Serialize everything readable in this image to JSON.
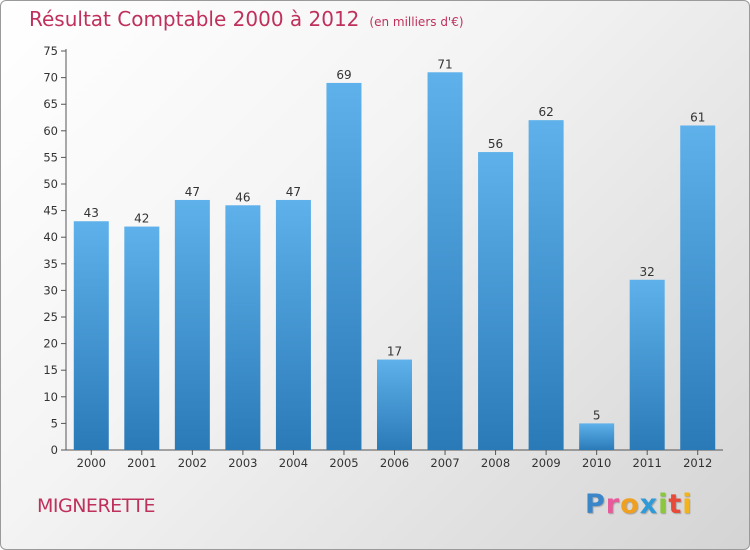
{
  "chart_data": {
    "type": "bar",
    "title": "Résultat Comptable 2000 à 2012",
    "unit_label": "(en milliers d'€)",
    "categories": [
      "2000",
      "2001",
      "2002",
      "2003",
      "2004",
      "2005",
      "2006",
      "2007",
      "2008",
      "2009",
      "2010",
      "2011",
      "2012"
    ],
    "values": [
      43,
      42,
      47,
      46,
      47,
      69,
      17,
      71,
      56,
      62,
      5,
      32,
      61
    ],
    "ylim": [
      0,
      75
    ],
    "yticks": [
      0,
      5,
      10,
      15,
      20,
      25,
      30,
      35,
      40,
      45,
      50,
      55,
      60,
      65,
      70,
      75
    ],
    "xlabel": "",
    "ylabel": "",
    "grid": false,
    "colors": {
      "bar_top": "#5eb1ea",
      "bar_bottom": "#2a7ab8",
      "text": "#333333",
      "axis": "#555555",
      "accent": "#c0305c"
    }
  },
  "footer": {
    "location": "MIGNERETTE",
    "logo_letters": [
      {
        "ch": "P",
        "color": "#3a86c8"
      },
      {
        "ch": "r",
        "color": "#e85a9a"
      },
      {
        "ch": "o",
        "color": "#f0a020"
      },
      {
        "ch": "x",
        "color": "#2f9ad8"
      },
      {
        "ch": "i",
        "color": "#8cc63f"
      },
      {
        "ch": "t",
        "color": "#e84a3a"
      },
      {
        "ch": "i",
        "color": "#f3b41b"
      }
    ]
  }
}
